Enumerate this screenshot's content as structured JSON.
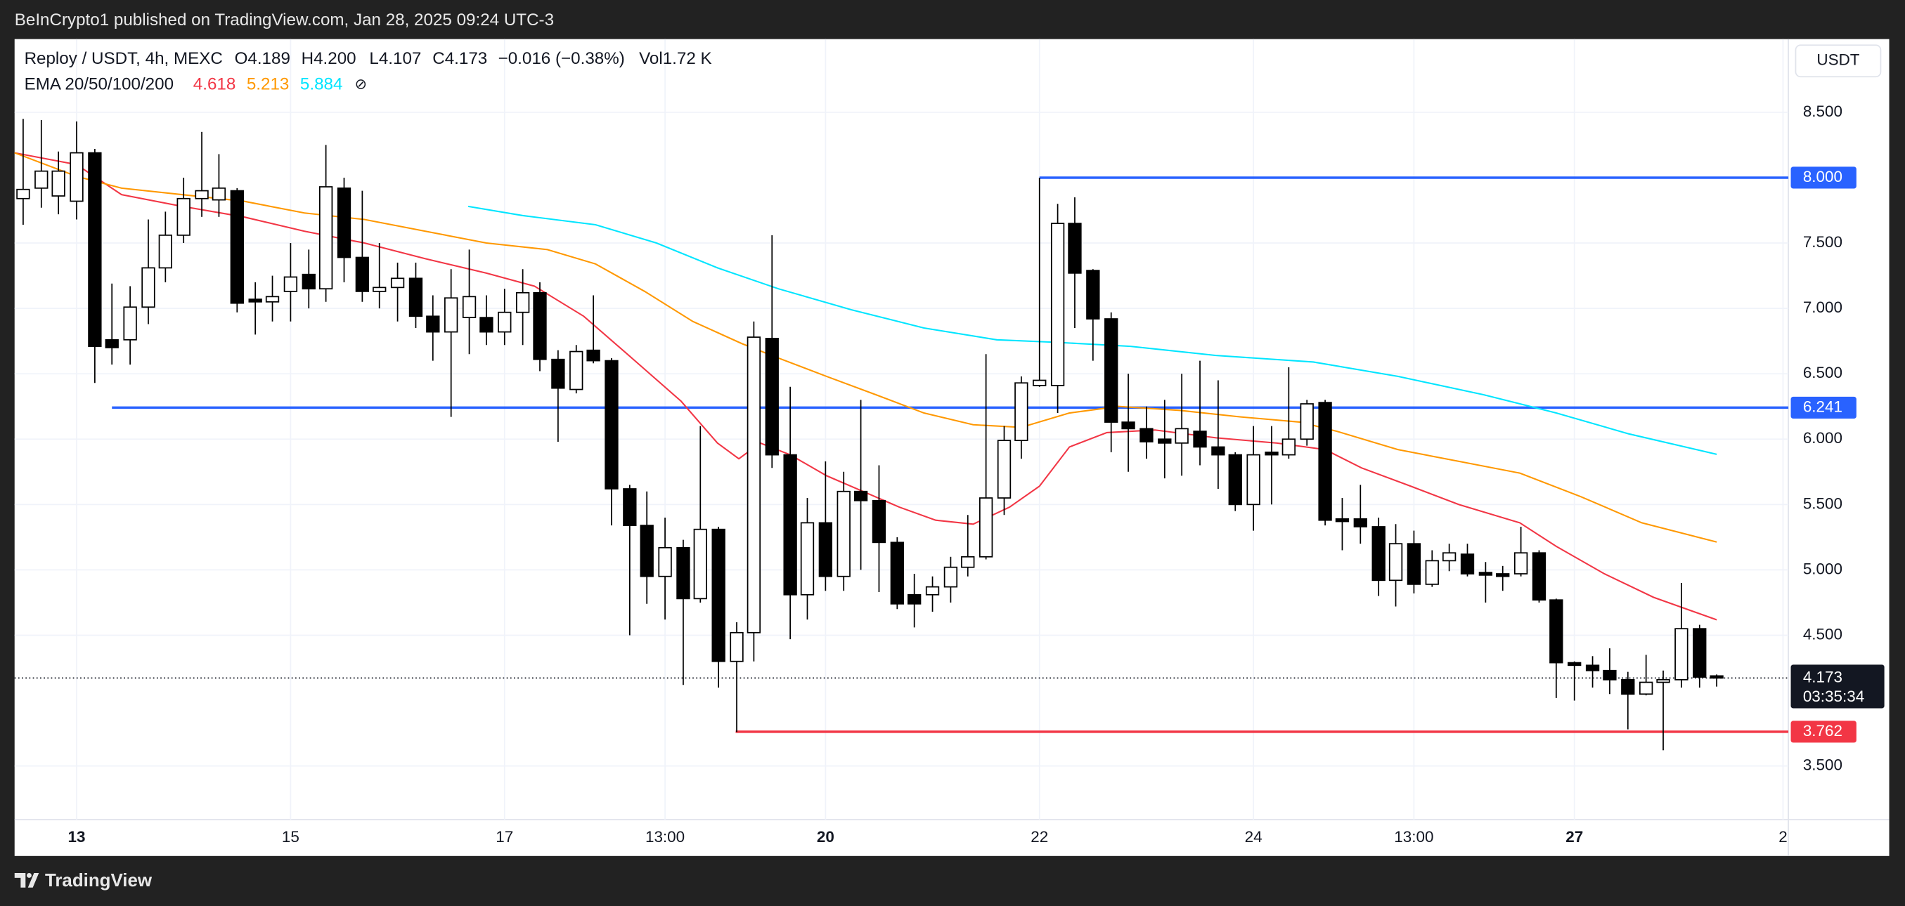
{
  "header": "BeInCrypto1 published on TradingView.com, Jan 28, 2025 09:24 UTC-3",
  "footer": "TradingView",
  "currency": "USDT",
  "chart_data": {
    "type": "candlestick",
    "symbol": "Reploy / USDT, 4h, MEXC",
    "ohlc_legend": [
      "O4.189",
      "H4.200",
      "L4.107",
      "C4.173",
      "−0.016 (−0.38%)",
      "Vol1.72 K"
    ],
    "ema_legend": "EMA 20/50/100/200",
    "ema_hidden_icon": "⊘",
    "x": [
      12.5,
      12.67,
      12.83,
      13,
      13.17,
      13.33,
      13.5,
      13.67,
      13.83,
      14,
      14.17,
      14.33,
      14.5,
      14.67,
      14.83,
      15,
      15.17,
      15.33,
      15.5,
      15.67,
      15.83,
      16,
      16.17,
      16.33,
      16.5,
      16.67,
      16.83,
      17,
      17.17,
      17.33,
      17.5,
      17.67,
      17.83,
      18,
      18.17,
      18.33,
      18.5,
      18.67,
      18.83,
      19,
      19.17,
      19.33,
      19.5,
      19.67,
      19.83,
      20,
      20.17,
      20.33,
      20.5,
      20.67,
      20.83,
      21,
      21.17,
      21.33,
      21.5,
      21.67,
      21.83,
      22,
      22.17,
      22.33,
      22.5,
      22.67,
      22.83,
      23,
      23.17,
      23.33,
      23.5,
      23.67,
      23.83,
      24,
      24.17,
      24.33,
      24.5,
      24.67,
      24.83,
      25,
      25.17,
      25.33,
      25.5,
      25.67,
      25.83,
      26,
      26.17,
      26.33,
      26.5,
      26.67,
      26.83,
      27,
      27.17,
      27.33,
      27.5,
      27.67,
      27.83,
      28,
      28.17,
      28.33
    ],
    "open": [
      7.84,
      7.92,
      7.86,
      7.82,
      8.19,
      6.76,
      6.76,
      7.01,
      7.31,
      7.56,
      7.84,
      7.83,
      7.9,
      7.07,
      7.05,
      7.13,
      7.26,
      7.15,
      7.92,
      7.39,
      7.13,
      7.16,
      7.23,
      6.94,
      6.82,
      6.93,
      6.93,
      6.82,
      6.97,
      7.12,
      6.61,
      6.38,
      6.68,
      6.6,
      5.62,
      5.34,
      4.95,
      5.17,
      4.78,
      5.31,
      4.3,
      4.52,
      6.77,
      5.88,
      4.81,
      5.36,
      4.95,
      5.6,
      5.53,
      5.21,
      4.81,
      4.81,
      4.87,
      5.02,
      5.1,
      5.55,
      5.99,
      6.41,
      6.41,
      7.65,
      7.29,
      6.92,
      6.13,
      6.08,
      6.0,
      5.97,
      6.06,
      5.94,
      5.88,
      5.5,
      5.9,
      5.88,
      6.0,
      6.28,
      5.39,
      5.39,
      5.33,
      4.92,
      5.2,
      4.89,
      5.07,
      5.12,
      4.98,
      4.97,
      4.97,
      5.13,
      4.77,
      4.29,
      4.27,
      4.23,
      4.16,
      4.05,
      4.14,
      4.16,
      4.55,
      4.189
    ],
    "high": [
      8.45,
      8.44,
      8.2,
      8.43,
      8.22,
      7.19,
      7.17,
      7.68,
      7.74,
      8.0,
      8.35,
      8.18,
      7.92,
      7.2,
      7.25,
      7.5,
      7.45,
      8.25,
      8.0,
      7.9,
      7.5,
      7.35,
      7.35,
      7.1,
      7.3,
      7.45,
      7.1,
      7.15,
      7.3,
      7.2,
      6.68,
      6.72,
      7.1,
      6.62,
      5.65,
      5.6,
      5.4,
      5.23,
      6.1,
      5.33,
      4.6,
      6.9,
      7.56,
      6.4,
      5.55,
      5.83,
      5.75,
      6.3,
      5.8,
      5.25,
      4.97,
      4.95,
      5.1,
      5.42,
      6.65,
      6.1,
      6.48,
      8.0,
      7.8,
      7.85,
      7.3,
      6.97,
      6.5,
      6.25,
      6.3,
      6.5,
      6.6,
      6.45,
      5.9,
      6.1,
      6.1,
      6.55,
      6.3,
      6.3,
      5.55,
      5.65,
      5.4,
      5.35,
      5.3,
      5.15,
      5.2,
      5.2,
      5.06,
      5.03,
      5.33,
      5.15,
      4.78,
      4.3,
      4.34,
      4.4,
      4.22,
      4.35,
      4.23,
      4.9,
      4.58,
      4.2
    ],
    "low": [
      7.64,
      7.77,
      7.72,
      7.68,
      6.43,
      6.57,
      6.57,
      6.88,
      7.2,
      7.5,
      7.7,
      7.7,
      6.97,
      6.8,
      6.9,
      6.9,
      7.0,
      7.05,
      7.2,
      7.05,
      7.0,
      6.9,
      6.85,
      6.6,
      6.17,
      6.65,
      6.72,
      6.72,
      6.72,
      6.52,
      5.98,
      6.35,
      6.58,
      5.34,
      4.5,
      4.74,
      4.62,
      4.12,
      4.75,
      4.1,
      3.76,
      4.3,
      5.78,
      4.47,
      4.62,
      4.84,
      4.84,
      5.0,
      4.83,
      4.7,
      4.56,
      4.68,
      4.75,
      4.95,
      5.08,
      5.42,
      5.85,
      6.4,
      6.2,
      6.85,
      6.6,
      5.9,
      5.75,
      5.85,
      5.7,
      5.72,
      5.8,
      5.62,
      5.45,
      5.3,
      5.5,
      5.85,
      5.95,
      5.34,
      5.15,
      5.2,
      4.8,
      4.72,
      4.82,
      4.87,
      4.99,
      4.95,
      4.75,
      4.84,
      4.95,
      4.75,
      4.02,
      4.0,
      4.1,
      4.05,
      3.78,
      4.04,
      3.62,
      4.1,
      4.1,
      4.107
    ],
    "close": [
      7.91,
      8.05,
      8.05,
      8.19,
      6.71,
      6.7,
      7.01,
      7.31,
      7.56,
      7.84,
      7.9,
      7.92,
      7.04,
      7.05,
      7.09,
      7.24,
      7.15,
      7.93,
      7.39,
      7.13,
      7.16,
      7.23,
      6.94,
      6.82,
      7.08,
      7.09,
      6.82,
      6.97,
      7.12,
      6.61,
      6.39,
      6.67,
      6.6,
      5.62,
      5.34,
      4.95,
      5.17,
      4.78,
      5.31,
      4.3,
      4.52,
      6.78,
      5.88,
      4.81,
      5.36,
      4.95,
      5.6,
      5.53,
      5.21,
      4.74,
      4.74,
      4.87,
      5.02,
      5.1,
      5.55,
      5.99,
      6.43,
      6.45,
      7.65,
      7.27,
      6.92,
      6.13,
      6.08,
      5.98,
      5.97,
      6.08,
      5.94,
      5.88,
      5.5,
      5.88,
      5.88,
      6.0,
      6.27,
      5.38,
      5.37,
      5.33,
      4.92,
      5.2,
      4.89,
      5.07,
      5.13,
      4.97,
      4.96,
      4.95,
      5.13,
      4.77,
      4.29,
      4.27,
      4.23,
      4.16,
      4.05,
      4.14,
      4.16,
      4.55,
      4.18,
      4.173
    ],
    "up_color": "#ffffff",
    "down_color": "#000000",
    "wick_color": "#000000",
    "series": [
      {
        "color": "#f23645",
        "x": [
          12.42,
          13,
          13.42,
          13.99,
          14.56,
          15.13,
          15.69,
          16.26,
          16.83,
          17.28,
          17.74,
          18.19,
          18.65,
          18.99,
          19.19,
          19.39,
          19.67,
          20.01,
          20.35,
          20.69,
          21.03,
          21.38,
          21.72,
          22,
          22.28,
          22.63,
          23.08,
          23.65,
          24.22,
          24.67,
          25.01,
          25.47,
          25.92,
          26.49,
          26.83,
          27.28,
          27.74,
          28.33
        ],
        "values": [
          8.19,
          8.1,
          7.87,
          7.78,
          7.7,
          7.59,
          7.5,
          7.38,
          7.27,
          7.17,
          6.94,
          6.62,
          6.29,
          5.97,
          5.85,
          5.97,
          5.88,
          5.72,
          5.6,
          5.48,
          5.38,
          5.35,
          5.48,
          5.64,
          5.94,
          6.05,
          6.07,
          6.01,
          5.97,
          5.92,
          5.78,
          5.64,
          5.5,
          5.36,
          5.18,
          4.97,
          4.79,
          4.618
        ]
      },
      {
        "color": "#ff9800",
        "x": [
          12.42,
          13,
          13.42,
          13.99,
          14.56,
          15.13,
          15.69,
          16.26,
          16.83,
          17.4,
          17.85,
          18.31,
          18.76,
          19.22,
          19.56,
          20.01,
          20.47,
          20.92,
          21.38,
          21.83,
          22.28,
          22.74,
          23.31,
          23.88,
          24.44,
          24.78,
          25.35,
          25.92,
          26.49,
          27.06,
          27.63,
          28.33
        ],
        "values": [
          8.19,
          8.01,
          7.92,
          7.87,
          7.82,
          7.73,
          7.68,
          7.59,
          7.5,
          7.45,
          7.34,
          7.13,
          6.9,
          6.73,
          6.62,
          6.48,
          6.34,
          6.2,
          6.11,
          6.09,
          6.2,
          6.25,
          6.22,
          6.17,
          6.13,
          6.06,
          5.92,
          5.83,
          5.74,
          5.56,
          5.36,
          5.213
        ]
      },
      {
        "color": "#00e5ff",
        "x": [
          16.66,
          17.17,
          17.85,
          18.42,
          18.99,
          19.56,
          20.24,
          20.92,
          21.6,
          22.17,
          22.85,
          23.65,
          24.56,
          25.35,
          26.15,
          26.83,
          27.51,
          28.33
        ],
        "values": [
          7.78,
          7.71,
          7.64,
          7.5,
          7.31,
          7.15,
          6.99,
          6.85,
          6.76,
          6.74,
          6.71,
          6.64,
          6.59,
          6.48,
          6.34,
          6.2,
          6.04,
          5.884
        ]
      }
    ],
    "levels": [
      {
        "value": 8.0,
        "label": "8.000",
        "start": 22,
        "color": "#2962ff"
      },
      {
        "value": 6.241,
        "label": "6.241",
        "start": 13.33,
        "color": "#2962ff"
      },
      {
        "value": 3.762,
        "label": "3.762",
        "start": 19.16,
        "color": "#f23645"
      }
    ],
    "last_price": {
      "value": 4.173,
      "label": "4.173",
      "countdown": "03:35:34"
    },
    "xlim": [
      12.42,
      29.0
    ],
    "ylim": [
      3.09,
      9.06
    ],
    "xticks": [
      {
        "value": 13,
        "label": "13",
        "bold": true
      },
      15,
      17,
      {
        "value": 18.5,
        "label": "13:00"
      },
      {
        "value": 20,
        "label": "20",
        "bold": true
      },
      22,
      24,
      {
        "value": 25.5,
        "label": "13:00"
      },
      {
        "value": 27,
        "label": "27",
        "bold": true
      },
      {
        "value": 28.95,
        "label": "2"
      }
    ],
    "yticks": [
      {
        "value": 3.5,
        "label": "3.500"
      },
      {
        "value": 4.5,
        "label": "4.500"
      },
      {
        "value": 5,
        "label": "5.000"
      },
      {
        "value": 5.5,
        "label": "5.500"
      },
      {
        "value": 6,
        "label": "6.000"
      },
      {
        "value": 6.5,
        "label": "6.500"
      },
      {
        "value": 7,
        "label": "7.000"
      },
      {
        "value": 7.5,
        "label": "7.500"
      },
      {
        "value": 8.5,
        "label": "8.500"
      }
    ],
    "grid": true
  }
}
